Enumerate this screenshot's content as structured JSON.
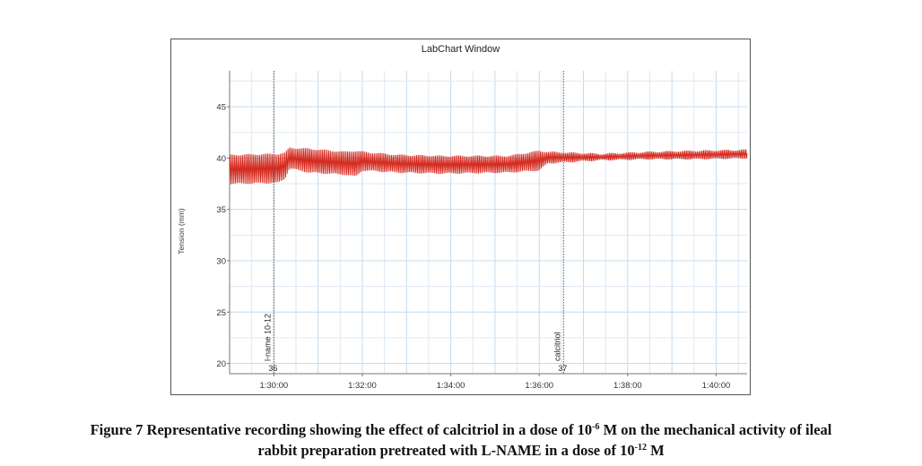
{
  "window_title": "LabChart Window",
  "chart_data": {
    "type": "line",
    "title": "LabChart Window",
    "xlabel": "",
    "ylabel": "Tension (mm)",
    "x_unit": "minutes since 1:29:00",
    "xlim": [
      0,
      11.7
    ],
    "ylim": [
      19,
      48.5
    ],
    "y_ticks": [
      20,
      25,
      30,
      35,
      40,
      45
    ],
    "x_ticks": [
      {
        "at": 1,
        "label": "1:30:00"
      },
      {
        "at": 3,
        "label": "1:32:00"
      },
      {
        "at": 5,
        "label": "1:34:00"
      },
      {
        "at": 7,
        "label": "1:36:00"
      },
      {
        "at": 9,
        "label": "1:38:00"
      },
      {
        "at": 11,
        "label": "1:40:00"
      }
    ],
    "grid": true,
    "series": [
      {
        "color": "#d42b20",
        "oscillation": true,
        "envelope": [
          {
            "x": 0.0,
            "min": 37.5,
            "max": 40.3
          },
          {
            "x": 1.1,
            "min": 37.6,
            "max": 40.4
          },
          {
            "x": 1.25,
            "min": 38.0,
            "max": 40.5
          },
          {
            "x": 1.35,
            "min": 39.0,
            "max": 41.0
          },
          {
            "x": 1.8,
            "min": 38.6,
            "max": 40.9
          },
          {
            "x": 2.6,
            "min": 38.4,
            "max": 40.6
          },
          {
            "x": 2.85,
            "min": 38.2,
            "max": 40.7
          },
          {
            "x": 3.0,
            "min": 38.8,
            "max": 40.6
          },
          {
            "x": 3.8,
            "min": 38.6,
            "max": 40.3
          },
          {
            "x": 4.8,
            "min": 38.5,
            "max": 40.2
          },
          {
            "x": 6.3,
            "min": 38.6,
            "max": 40.2
          },
          {
            "x": 7.0,
            "min": 38.8,
            "max": 40.7
          },
          {
            "x": 7.2,
            "min": 39.5,
            "max": 40.6
          },
          {
            "x": 8.4,
            "min": 39.8,
            "max": 40.4
          },
          {
            "x": 9.5,
            "min": 39.9,
            "max": 40.6
          },
          {
            "x": 10.5,
            "min": 39.9,
            "max": 40.7
          },
          {
            "x": 11.7,
            "min": 40.0,
            "max": 40.8
          }
        ]
      }
    ],
    "annotations": [
      {
        "x": 1.0,
        "label": "l-name 10-12",
        "number": "36"
      },
      {
        "x": 7.55,
        "label": "calcitriol",
        "number": "37"
      }
    ]
  },
  "caption": {
    "line1_a": "Figure 7 Representative recording showing the effect of calcitriol in a dose of 10",
    "line1_exp": "-6",
    "line1_b": " M on the mechanical activity of ileal",
    "line2_a": "rabbit preparation pretreated with L-NAME in a dose of 10",
    "line2_exp": "-12",
    "line2_b": " M"
  }
}
